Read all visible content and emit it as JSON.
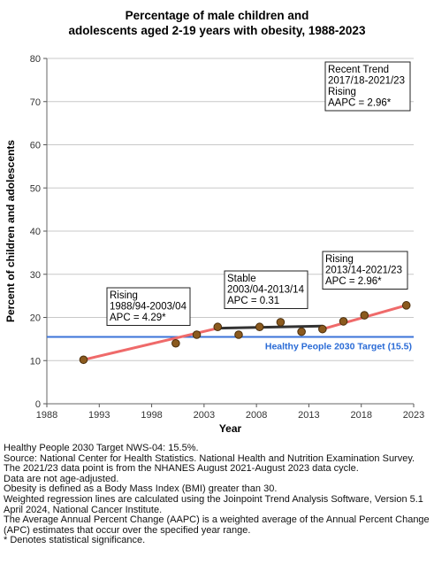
{
  "chart_data": {
    "type": "scatter",
    "title_lines": [
      "Percentage of male children and",
      "adolescents aged 2-19 years with obesity, 1988-2023"
    ],
    "xlabel": "Year",
    "ylabel": "Percent of children and adolescents",
    "xlim": [
      1988,
      2023
    ],
    "ylim": [
      0,
      80
    ],
    "x_ticks": [
      1988,
      1993,
      1998,
      2003,
      2008,
      2013,
      2018,
      2023
    ],
    "y_ticks": [
      0,
      10,
      20,
      30,
      40,
      50,
      60,
      70,
      80
    ],
    "grid": "horizontal",
    "points": {
      "x": [
        1991.5,
        2000.3,
        2002.3,
        2004.3,
        2006.3,
        2008.3,
        2010.3,
        2012.3,
        2014.3,
        2016.3,
        2018.3,
        2022.3
      ],
      "y": [
        10.2,
        14.0,
        16.0,
        17.8,
        16.0,
        17.8,
        18.9,
        16.7,
        17.3,
        19.1,
        20.5,
        22.8
      ]
    },
    "trend_segments": [
      {
        "x": [
          1991.5,
          2004.3
        ],
        "y": [
          10.2,
          17.5
        ],
        "color": "#ef6a6a"
      },
      {
        "x": [
          2004.3,
          2014.3
        ],
        "y": [
          17.5,
          18.0
        ],
        "color": "#333333"
      },
      {
        "x": [
          2014.3,
          2022.3
        ],
        "y": [
          17.3,
          22.8
        ],
        "color": "#ef6a6a"
      }
    ],
    "target": {
      "value": 15.5,
      "label": "Healthy People 2030 Target (15.5)",
      "color": "#3b73d8"
    },
    "annotations": [
      {
        "lines": [
          "Rising",
          "1988/94-2003/04",
          "APC =  4.29*"
        ]
      },
      {
        "lines": [
          "Stable",
          "2003/04-2013/14",
          "APC =  0.31"
        ]
      },
      {
        "lines": [
          "Rising",
          "2013/14-2021/23",
          "APC =  2.96*"
        ]
      },
      {
        "lines": [
          "Recent Trend",
          "2017/18-2021/23",
          "Rising",
          "AAPC =  2.96*"
        ]
      }
    ],
    "colors": {
      "point_fill": "#8b5a1e",
      "point_stroke": "#4a2e0c",
      "grid": "#c8c8c8"
    }
  },
  "notes": [
    "Healthy People 2030 Target NWS-04: 15.5%.",
    "Source: National Center for Health Statistics. National Health and Nutrition Examination Survey.",
    "The 2021/23 data point is from the NHANES August 2021-August 2023 data cycle.",
    "Data are not age-adjusted.",
    "Obesity is defined as a Body Mass Index (BMI) greater than 30.",
    "Weighted regression lines are calculated using the Joinpoint Trend Analysis Software, Version 5.1 April 2024, National Cancer Institute.",
    "The Average Annual Percent Change (AAPC) is a weighted average of the Annual Percent Change (APC) estimates that occur over the specified year range.",
    "* Denotes statistical significance."
  ]
}
